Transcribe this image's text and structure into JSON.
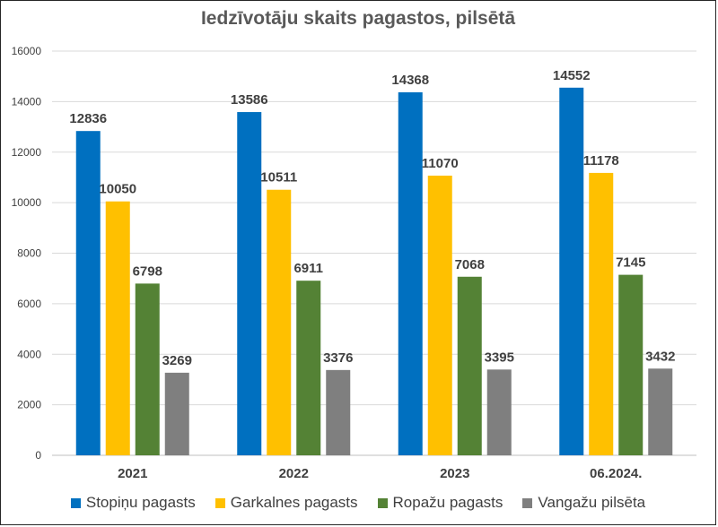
{
  "chart_data": {
    "type": "bar",
    "title": "Iedzīvotāju skaits pagastos, pilsētā",
    "xlabel": "",
    "ylabel": "",
    "categories": [
      "2021",
      "2022",
      "2023",
      "06.2024."
    ],
    "ylim": [
      0,
      16000
    ],
    "yticks": [
      0,
      2000,
      4000,
      6000,
      8000,
      10000,
      12000,
      14000,
      16000
    ],
    "grid": true,
    "legend_position": "bottom",
    "series": [
      {
        "name": "Stopiņu pagasts",
        "color": "#0070C0",
        "values": [
          12836,
          13586,
          14368,
          14552
        ]
      },
      {
        "name": "Garkalnes pagasts",
        "color": "#FFC000",
        "values": [
          10050,
          10511,
          11070,
          11178
        ]
      },
      {
        "name": "Ropažu pagasts",
        "color": "#548235",
        "values": [
          6798,
          6911,
          7068,
          7145
        ]
      },
      {
        "name": "Vangažu pilsēta",
        "color": "#7F7F7F",
        "values": [
          3269,
          3376,
          3395,
          3432
        ]
      }
    ]
  }
}
